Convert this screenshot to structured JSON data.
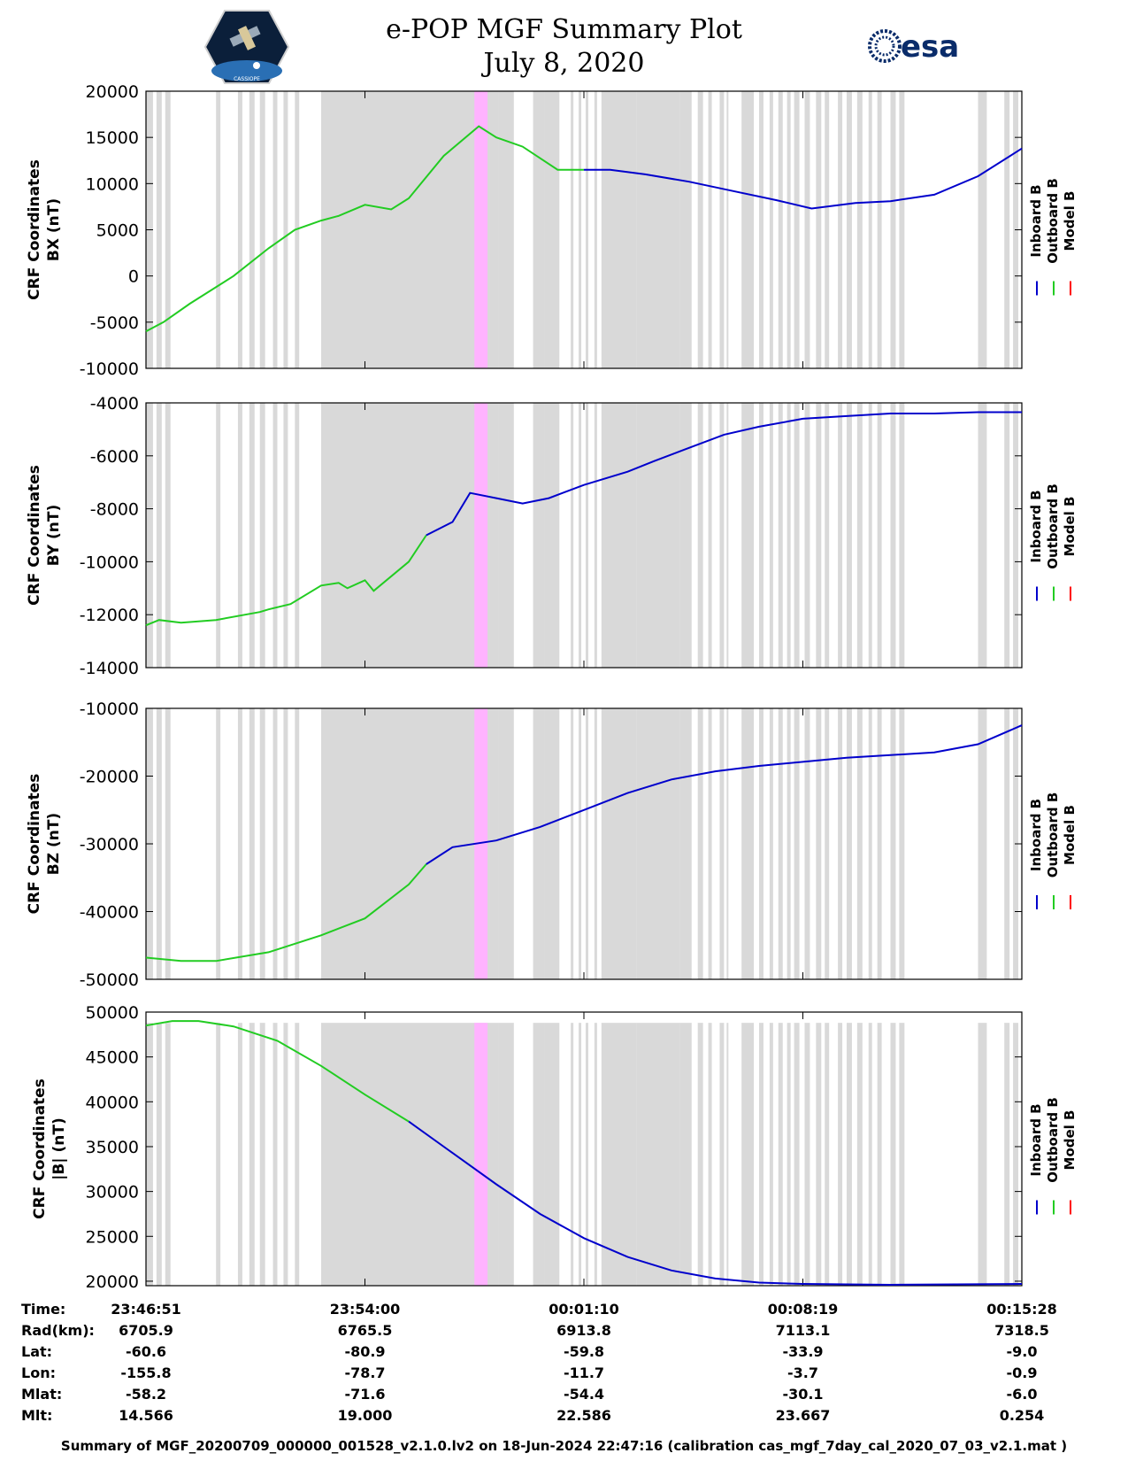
{
  "header": {
    "title_line1": "e-POP MGF Summary Plot",
    "title_line2": "July 8, 2020",
    "left_logo_text": "CASSIOPE",
    "right_logo_text": "esa"
  },
  "colors": {
    "inboard": "#0000cc",
    "outboard": "#22cc22",
    "model": "#ff0000",
    "gap_fill": "#d9d9d9",
    "highlight": "#ffb3ff"
  },
  "legend": [
    "Inboard B",
    "Outboard B",
    "Model B"
  ],
  "footer": "Summary of MGF_20200709_000000_001528_v2.1.0.lv2 on 18-Jun-2024 22:47:16 (calibration cas_mgf_7day_cal_2020_07_03_v2.1.mat )",
  "ephemeris": {
    "row_labels": [
      "Time:",
      "Rad(km):",
      "Lat:",
      "Lon:",
      "Mlat:",
      "Mlt:"
    ],
    "columns": [
      [
        "23:46:51",
        "6705.9",
        "-60.6",
        "-155.8",
        "-58.2",
        "14.566"
      ],
      [
        "23:54:00",
        "6765.5",
        "-80.9",
        "-78.7",
        "-71.6",
        "19.000"
      ],
      [
        "00:01:10",
        "6913.8",
        "-59.8",
        "-11.7",
        "-54.4",
        "22.586"
      ],
      [
        "00:08:19",
        "7113.1",
        "-33.9",
        "-3.7",
        "-30.1",
        "23.667"
      ],
      [
        "00:15:28",
        "7318.5",
        "-9.0",
        "-0.9",
        "-6.0",
        "0.254"
      ]
    ]
  },
  "chart_data": [
    {
      "type": "line",
      "ylabel": [
        "CRF Coordinates",
        "BX (nT)"
      ],
      "ylim": [
        -10000,
        20000
      ],
      "yticks": [
        20000,
        15000,
        10000,
        5000,
        0,
        -5000,
        -10000
      ],
      "xlabel_ticks": [
        "23:46:51",
        "23:54:00",
        "00:01:10",
        "00:08:19",
        "00:15:28"
      ],
      "series": [
        {
          "name": "Outboard B",
          "color_key": "outboard",
          "x": [
            0,
            0.02,
            0.05,
            0.1,
            0.14,
            0.17,
            0.2,
            0.22,
            0.25,
            0.28,
            0.3,
            0.34,
            0.38,
            0.4,
            0.43,
            0.47,
            0.5
          ],
          "y": [
            -6000,
            -5000,
            -3000,
            0,
            3000,
            5000,
            6000,
            6500,
            7700,
            7200,
            8400,
            13000,
            16200,
            15000,
            14000,
            11500,
            11500
          ]
        },
        {
          "name": "Inboard B",
          "color_key": "inboard",
          "x": [
            0.5,
            0.53,
            0.57,
            0.62,
            0.67,
            0.72,
            0.76,
            0.81,
            0.85,
            0.9,
            0.95,
            1.0
          ],
          "y": [
            11500,
            11500,
            11000,
            10200,
            9200,
            8200,
            7300,
            7900,
            8100,
            8800,
            10800,
            13800
          ]
        }
      ]
    },
    {
      "type": "line",
      "ylabel": [
        "CRF Coordinates",
        "BY (nT)"
      ],
      "ylim": [
        -14000,
        -4000
      ],
      "yticks": [
        -4000,
        -6000,
        -8000,
        -10000,
        -12000,
        -14000
      ],
      "xlabel_ticks": [
        "23:46:51",
        "23:54:00",
        "00:01:10",
        "00:08:19",
        "00:15:28"
      ],
      "series": [
        {
          "name": "Outboard B",
          "color_key": "outboard",
          "x": [
            0,
            0.015,
            0.04,
            0.08,
            0.13,
            0.14,
            0.165,
            0.2,
            0.22,
            0.23,
            0.25,
            0.26,
            0.3,
            0.32
          ],
          "y": [
            -12400,
            -12200,
            -12300,
            -12200,
            -11900,
            -11800,
            -11600,
            -10900,
            -10800,
            -11000,
            -10700,
            -11100,
            -10000,
            -9000
          ]
        },
        {
          "name": "Inboard B",
          "color_key": "inboard",
          "x": [
            0.32,
            0.35,
            0.37,
            0.4,
            0.43,
            0.46,
            0.5,
            0.55,
            0.58,
            0.62,
            0.66,
            0.7,
            0.75,
            0.8,
            0.85,
            0.9,
            0.95,
            1.0
          ],
          "y": [
            -9000,
            -8500,
            -7400,
            -7600,
            -7800,
            -7600,
            -7100,
            -6600,
            -6200,
            -5700,
            -5200,
            -4900,
            -4600,
            -4500,
            -4400,
            -4400,
            -4350,
            -4350
          ]
        }
      ]
    },
    {
      "type": "line",
      "ylabel": [
        "CRF Coordinates",
        "BZ (nT)"
      ],
      "ylim": [
        -50000,
        -10000
      ],
      "yticks": [
        -10000,
        -20000,
        -30000,
        -40000,
        -50000
      ],
      "xlabel_ticks": [
        "23:46:51",
        "23:54:00",
        "00:01:10",
        "00:08:19",
        "00:15:28"
      ],
      "series": [
        {
          "name": "Outboard B",
          "color_key": "outboard",
          "x": [
            0,
            0.04,
            0.08,
            0.14,
            0.2,
            0.25,
            0.3,
            0.32
          ],
          "y": [
            -46800,
            -47300,
            -47300,
            -46000,
            -43500,
            -41000,
            -36000,
            -33000
          ]
        },
        {
          "name": "Inboard B",
          "color_key": "inboard",
          "x": [
            0.32,
            0.35,
            0.4,
            0.45,
            0.5,
            0.55,
            0.6,
            0.65,
            0.7,
            0.75,
            0.8,
            0.85,
            0.9,
            0.95,
            1.0
          ],
          "y": [
            -33000,
            -30500,
            -29500,
            -27500,
            -25000,
            -22500,
            -20500,
            -19300,
            -18500,
            -17900,
            -17300,
            -16900,
            -16500,
            -15300,
            -12500
          ]
        }
      ]
    },
    {
      "type": "line",
      "ylabel": [
        "CRF Coordinates",
        "|B| (nT)"
      ],
      "ylim": [
        19500,
        50000
      ],
      "yticks": [
        50000,
        45000,
        40000,
        35000,
        30000,
        25000,
        20000
      ],
      "xlabel_ticks": [
        "23:46:51",
        "23:54:00",
        "00:01:10",
        "00:08:19",
        "00:15:28"
      ],
      "series": [
        {
          "name": "Outboard B",
          "color_key": "outboard",
          "x": [
            0,
            0.03,
            0.06,
            0.1,
            0.15,
            0.2,
            0.25,
            0.3
          ],
          "y": [
            48500,
            49000,
            49000,
            48400,
            46800,
            44000,
            40800,
            37800
          ]
        },
        {
          "name": "Inboard B",
          "color_key": "inboard",
          "x": [
            0.3,
            0.35,
            0.4,
            0.45,
            0.5,
            0.55,
            0.6,
            0.65,
            0.7,
            0.75,
            0.8,
            0.85,
            1.0
          ],
          "y": [
            37800,
            34300,
            30800,
            27500,
            24800,
            22700,
            21200,
            20300,
            19850,
            19700,
            19650,
            19600,
            19700
          ]
        }
      ]
    }
  ],
  "gap_bands": [
    [
      0.0,
      0.008
    ],
    [
      0.012,
      0.018
    ],
    [
      0.022,
      0.028
    ],
    [
      0.08,
      0.085
    ],
    [
      0.105,
      0.11
    ],
    [
      0.118,
      0.124
    ],
    [
      0.13,
      0.136
    ],
    [
      0.145,
      0.15
    ],
    [
      0.157,
      0.162
    ],
    [
      0.17,
      0.175
    ],
    [
      0.2,
      0.403
    ],
    [
      0.403,
      0.42
    ],
    [
      0.442,
      0.455
    ],
    [
      0.455,
      0.472
    ],
    [
      0.485,
      0.488
    ],
    [
      0.494,
      0.497
    ],
    [
      0.502,
      0.505
    ],
    [
      0.512,
      0.515
    ],
    [
      0.52,
      0.56
    ],
    [
      0.56,
      0.61
    ],
    [
      0.61,
      0.623
    ],
    [
      0.63,
      0.636
    ],
    [
      0.642,
      0.646
    ],
    [
      0.655,
      0.66
    ],
    [
      0.663,
      0.665
    ],
    [
      0.68,
      0.694
    ],
    [
      0.7,
      0.705
    ],
    [
      0.712,
      0.716
    ],
    [
      0.722,
      0.727
    ],
    [
      0.732,
      0.736
    ],
    [
      0.74,
      0.746
    ],
    [
      0.752,
      0.758
    ],
    [
      0.765,
      0.771
    ],
    [
      0.775,
      0.78
    ],
    [
      0.79,
      0.795
    ],
    [
      0.8,
      0.806
    ],
    [
      0.812,
      0.818
    ],
    [
      0.825,
      0.829
    ],
    [
      0.835,
      0.84
    ],
    [
      0.85,
      0.856
    ],
    [
      0.86,
      0.866
    ],
    [
      0.95,
      0.96
    ],
    [
      0.98,
      0.986
    ],
    [
      0.99,
      0.996
    ]
  ],
  "highlight_band": [
    0.375,
    0.39
  ]
}
